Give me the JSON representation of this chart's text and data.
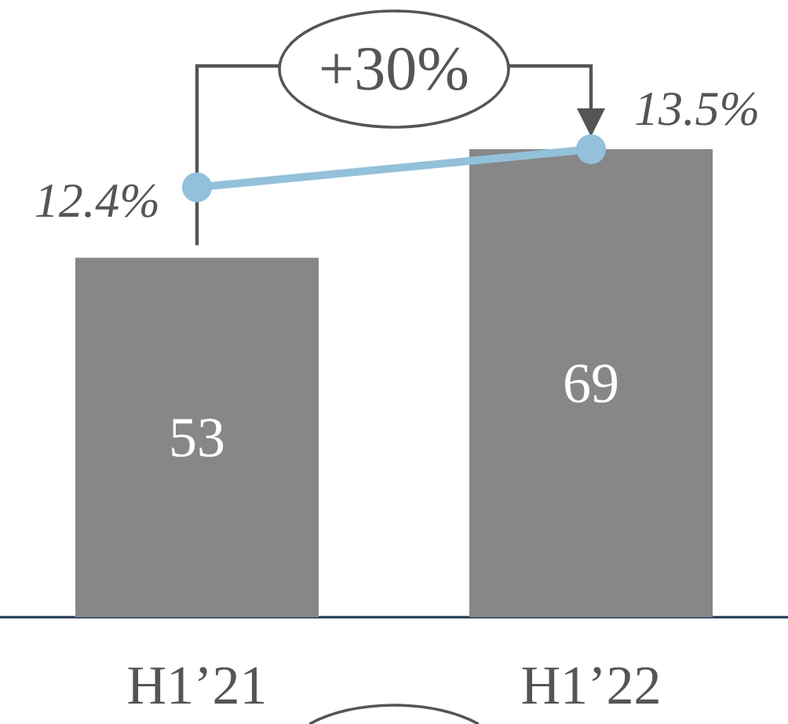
{
  "chart_data": {
    "type": "bar",
    "categories": [
      "H1’21",
      "H1’22"
    ],
    "series": [
      {
        "color": "#878787",
        "values": [
          53,
          69
        ],
        "value_labels": [
          "53",
          "69"
        ]
      },
      {
        "type": "line",
        "axis": "y2",
        "color": "#93c0da",
        "values": [
          12.4,
          13.5
        ],
        "value_labels": [
          "12.4%",
          "13.5%"
        ]
      }
    ],
    "annotations": [
      "+30%"
    ],
    "marker": "circle",
    "line_style": "solid",
    "tick_labels": "x"
  }
}
